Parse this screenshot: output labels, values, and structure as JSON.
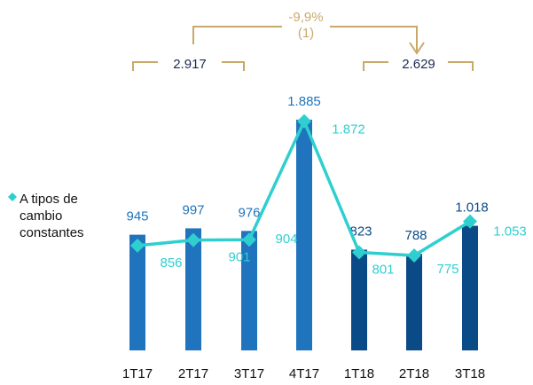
{
  "chart_data": {
    "type": "bar-line",
    "categories": [
      "1T17",
      "2T17",
      "3T17",
      "4T17",
      "1T18",
      "2T18",
      "3T18"
    ],
    "values": [
      945,
      997,
      976,
      1885,
      823,
      788,
      1018
    ],
    "value_labels": [
      "945",
      "997",
      "976",
      "1.885",
      "823",
      "788",
      "1.018"
    ],
    "colors": [
      "#1f74bd",
      "#1f74bd",
      "#1f74bd",
      "#1f74bd",
      "#0a4a87",
      "#0a4a87",
      "#0a4a87"
    ],
    "series": [
      {
        "name": "A tipos de cambio constantes",
        "color": "#2fcfd0",
        "values": [
          856,
          901,
          904,
          1872,
          801,
          775,
          1053
        ],
        "value_labels": [
          "856",
          "901",
          "904",
          "1.872",
          "801",
          "775",
          "1.053"
        ]
      }
    ],
    "ylim": [
      0,
      2000
    ],
    "annotations": [
      "2.917",
      "2.629",
      "-9,9%",
      "(1)"
    ]
  }
}
